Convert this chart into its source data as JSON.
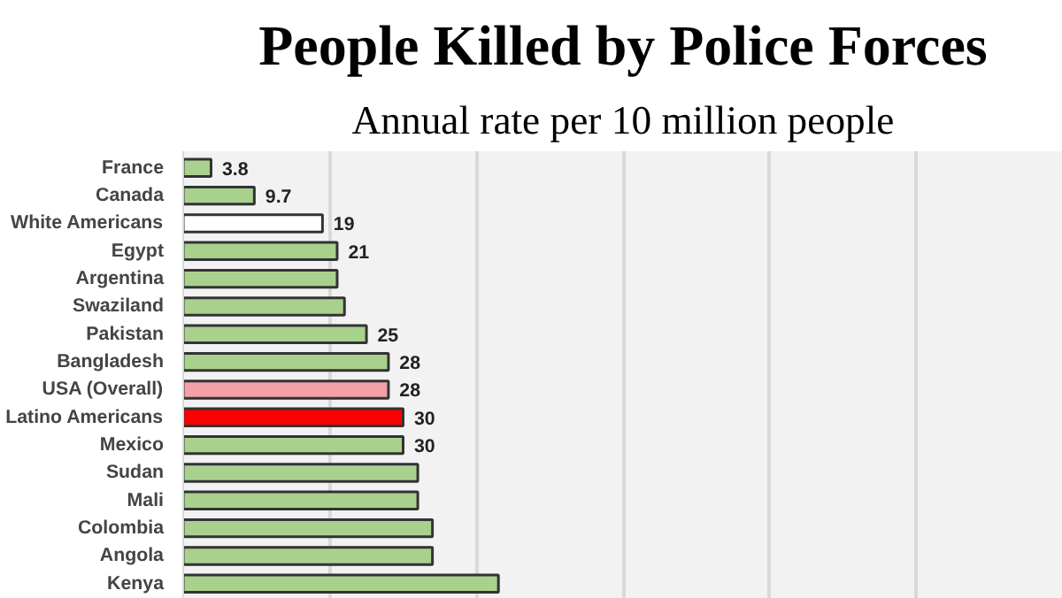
{
  "chart_data": {
    "type": "bar",
    "orientation": "horizontal",
    "title": "People Killed by Police Forces",
    "subtitle": "Annual rate per 10 million people",
    "categories": [
      "France",
      "Canada",
      "White Americans",
      "Egypt",
      "Argentina",
      "Swaziland",
      "Pakistan",
      "Bangladesh",
      "USA (Overall)",
      "Latino Americans",
      "Mexico",
      "Sudan",
      "Mali",
      "Colombia",
      "Angola",
      "Kenya"
    ],
    "values": [
      3.8,
      9.7,
      19,
      21,
      21,
      22,
      25,
      28,
      28,
      30,
      30,
      32,
      32,
      34,
      34,
      43
    ],
    "value_labels": [
      "3.8",
      "9.7",
      "19",
      "21",
      null,
      null,
      "25",
      "28",
      "28",
      "30",
      "30",
      null,
      null,
      null,
      null,
      null
    ],
    "colors": [
      "#a9d18e",
      "#a9d18e",
      "#ffffff",
      "#a9d18e",
      "#a9d18e",
      "#a9d18e",
      "#a9d18e",
      "#a9d18e",
      "#f4a0a8",
      "#ff0000",
      "#a9d18e",
      "#a9d18e",
      "#a9d18e",
      "#a9d18e",
      "#a9d18e",
      "#a9d18e"
    ],
    "xlim": [
      0,
      120
    ],
    "xticks": [
      {
        "value": 20,
        "label": null
      },
      {
        "value": 40,
        "label": null
      },
      {
        "value": 60,
        "label": null
      },
      {
        "value": 80,
        "label": null
      },
      {
        "value": 100,
        "label": null
      },
      {
        "value": 120,
        "label": null
      }
    ],
    "grid": "x",
    "tick_labels": "y"
  }
}
